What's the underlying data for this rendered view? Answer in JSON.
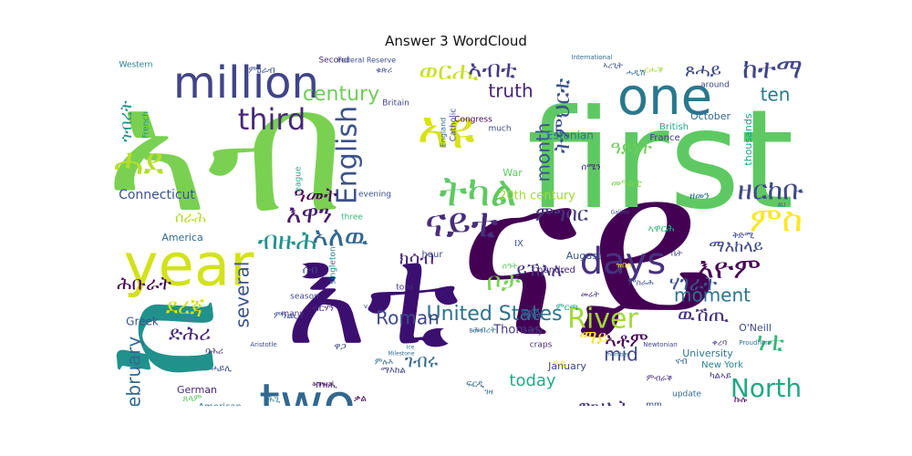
{
  "title": "Answer 3 WordCloud",
  "palette": [
    "#440154",
    "#3b528b",
    "#21918c",
    "#5ec962",
    "#fde725"
  ],
  "words": [
    {
      "text": "ናይ",
      "color": "#440154"
    },
    {
      "text": "ኣብ",
      "color": "#7ad151"
    },
    {
      "text": "first",
      "color": "#5ec962"
    },
    {
      "text": "እቲ",
      "color": "#3b0f70"
    },
    {
      "text": "ከ",
      "color": "#21918c"
    },
    {
      "text": "year",
      "color": "#d2e21b"
    },
    {
      "text": "million",
      "color": "#414487"
    },
    {
      "text": "one",
      "color": "#2a788e"
    },
    {
      "text": "two",
      "color": "#31688e"
    },
    {
      "text": "days",
      "color": "#46327e"
    },
    {
      "text": "third",
      "color": "#482878"
    },
    {
      "text": "English",
      "color": "#3b528b"
    },
    {
      "text": "ናይቲ",
      "color": "#472d7b"
    },
    {
      "text": "ኣዩ",
      "color": "#d8e219"
    },
    {
      "text": "ትካል",
      "color": "#5ec962"
    },
    {
      "text": "ከተማ",
      "color": "#414487"
    },
    {
      "text": "ዘርከቡ",
      "color": "#3e4989"
    },
    {
      "text": "United States",
      "color": "#2c728e"
    },
    {
      "text": "River",
      "color": "#a0da39"
    },
    {
      "text": "North",
      "color": "#22a884"
    },
    {
      "text": "today",
      "color": "#25ab82"
    },
    {
      "text": "century",
      "color": "#6ece58"
    },
    {
      "text": "month",
      "color": "#3b528b"
    },
    {
      "text": "truth",
      "color": "#482475"
    },
    {
      "text": "ten",
      "color": "#2a788e"
    },
    {
      "text": "ምስ",
      "color": "#fde725"
    },
    {
      "text": "እዋን",
      "color": "#481a6c"
    },
    {
      "text": "ዓመት",
      "color": "#440154"
    },
    {
      "text": "ሓደ",
      "color": "#b5de2b"
    },
    {
      "text": "ጾሓይ",
      "color": "#3e4a89"
    },
    {
      "text": "ወርሒ",
      "color": "#c8e020"
    },
    {
      "text": "ኣብቲ",
      "color": "#443983"
    },
    {
      "text": "ትምህርቲ",
      "color": "#3b528b"
    },
    {
      "text": "ዓይነት",
      "color": "#6ece58"
    },
    {
      "text": "ምግባር",
      "color": "#453781"
    },
    {
      "text": "ኣለዉ",
      "color": "#31688e"
    },
    {
      "text": "ብዙሕ",
      "color": "#21918c"
    },
    {
      "text": "ክሳብ",
      "color": "#482878"
    },
    {
      "text": "ሃገራት",
      "color": "#3b528b"
    },
    {
      "text": "እዮም",
      "color": "#440154"
    },
    {
      "text": "ማእከላይ",
      "color": "#3e4989"
    },
    {
      "text": "moment",
      "color": "#2c728e"
    },
    {
      "text": "ዉሽጢ",
      "color": "#46327e"
    },
    {
      "text": "ነቲ",
      "color": "#35b779"
    },
    {
      "text": "ይኽእሉ",
      "color": "#453781"
    },
    {
      "text": "ቦታ",
      "color": "#7ad151"
    },
    {
      "text": "Roman",
      "color": "#3e4989"
    },
    {
      "text": "several",
      "color": "#3b528b"
    },
    {
      "text": "February",
      "color": "#31688e"
    },
    {
      "text": "ሕቡራት",
      "color": "#440154"
    },
    {
      "text": "ደረጃ",
      "color": "#d8e219"
    },
    {
      "text": "ድሕሪ",
      "color": "#482878"
    },
    {
      "text": "ግዝኣት",
      "color": "#46327e"
    },
    {
      "text": "mid",
      "color": "#3e4989"
    },
    {
      "text": "ገብሩ",
      "color": "#31688e"
    },
    {
      "text": "ኣቶም",
      "color": "#440154"
    },
    {
      "text": "ማይ",
      "color": "#fde725"
    },
    {
      "text": "ጎብረት",
      "color": "#21918c"
    },
    {
      "text": "ሰራሕ",
      "color": "#b5de2b"
    },
    {
      "text": "Connecticut",
      "color": "#3b528b"
    },
    {
      "text": "20th century",
      "color": "#a0da39"
    },
    {
      "text": "Estonian",
      "color": "#2c728e"
    },
    {
      "text": "October",
      "color": "#31688e"
    },
    {
      "text": "thousands",
      "color": "#1f9e89"
    },
    {
      "text": "British",
      "color": "#22a884"
    },
    {
      "text": "France",
      "color": "#453781"
    },
    {
      "text": "University",
      "color": "#2a788e"
    },
    {
      "text": "New York",
      "color": "#26828e"
    },
    {
      "text": "O'Neill",
      "color": "#3e4989"
    },
    {
      "text": "August",
      "color": "#3b528b"
    },
    {
      "text": "January",
      "color": "#414487"
    },
    {
      "text": "Thomas",
      "color": "#453781"
    },
    {
      "text": "hundred",
      "color": "#482878"
    },
    {
      "text": "hour",
      "color": "#3e4989"
    },
    {
      "text": "tons",
      "color": "#46327e"
    },
    {
      "text": "America",
      "color": "#31688e"
    },
    {
      "text": "Greek",
      "color": "#3b528b"
    },
    {
      "text": "German",
      "color": "#482878"
    },
    {
      "text": "American",
      "color": "#2c728e"
    },
    {
      "text": "many",
      "color": "#46327e"
    },
    {
      "text": "season",
      "color": "#3e4989"
    },
    {
      "text": "evening",
      "color": "#3b528b"
    },
    {
      "text": "three",
      "color": "#35b779"
    },
    {
      "text": "Second",
      "color": "#482878"
    },
    {
      "text": "Western",
      "color": "#26828e"
    },
    {
      "text": "Federal Reserve",
      "color": "#3b528b"
    },
    {
      "text": "Congress",
      "color": "#440154"
    },
    {
      "text": "Britain",
      "color": "#414487"
    },
    {
      "text": "War",
      "color": "#5ec962"
    },
    {
      "text": "Catholic",
      "color": "#3e4989"
    },
    {
      "text": "England",
      "color": "#31688e"
    },
    {
      "text": "League",
      "color": "#22a884"
    },
    {
      "text": "singleton",
      "color": "#2a788e"
    },
    {
      "text": "around",
      "color": "#414487"
    },
    {
      "text": "much",
      "color": "#3e4989"
    },
    {
      "text": "early",
      "color": "#46327e"
    },
    {
      "text": "Nine",
      "color": "#2c728e"
    },
    {
      "text": "craps",
      "color": "#482878"
    },
    {
      "text": "four",
      "color": "#3b528b"
    },
    {
      "text": "update",
      "color": "#31688e"
    },
    {
      "text": "mm",
      "color": "#3e4989"
    },
    {
      "text": "IX",
      "color": "#3b528b"
    },
    {
      "text": "French",
      "color": "#21918c"
    },
    {
      "text": "International",
      "color": "#31688e"
    },
    {
      "text": "Aristotle",
      "color": "#3e4989"
    },
    {
      "text": "Proudhon",
      "color": "#2c728e"
    },
    {
      "text": "Newtonian",
      "color": "#414487"
    },
    {
      "text": "Galileo",
      "color": "#3e4989"
    },
    {
      "text": "annual",
      "color": "#440154"
    },
    {
      "text": "Build",
      "color": "#3b528b"
    },
    {
      "text": "Milestone",
      "color": "#31688e"
    },
    {
      "text": "Federation",
      "color": "#2c728e"
    },
    {
      "text": "number",
      "color": "#31688e"
    },
    {
      "text": "Ice",
      "color": "#2c728e"
    },
    {
      "text": "v",
      "color": "#3e4989"
    },
    {
      "text": "AU",
      "color": "#3b528b"
    },
    {
      "text": "ክልል",
      "color": "#3e4989"
    },
    {
      "text": "ሰሜን",
      "color": "#482878"
    },
    {
      "text": "ገዛ",
      "color": "#31688e"
    },
    {
      "text": "ሓይሊ",
      "color": "#3b528b"
    },
    {
      "text": "ባሕሪ",
      "color": "#453781"
    },
    {
      "text": "ሰብ",
      "color": "#414487"
    },
    {
      "text": "መሬት",
      "color": "#46327e"
    },
    {
      "text": "ቤት",
      "color": "#3e4989"
    },
    {
      "text": "ዘመን",
      "color": "#2c728e"
    },
    {
      "text": "ሰዓት",
      "color": "#5ec962"
    },
    {
      "text": "ዓዲ",
      "color": "#fde725"
    },
    {
      "text": "ኣዋርሕ",
      "color": "#35b779"
    },
    {
      "text": "መዓልቲ",
      "color": "#7ad151"
    },
    {
      "text": "ቃል",
      "color": "#440154"
    },
    {
      "text": "ፍርዲ",
      "color": "#31688e"
    },
    {
      "text": "ምንጪ",
      "color": "#3b528b"
    },
    {
      "text": "ብዝሒ",
      "color": "#482878"
    },
    {
      "text": "ሕጊ",
      "color": "#2a788e"
    },
    {
      "text": "ዋጋ",
      "color": "#3e4989"
    },
    {
      "text": "ካልኣይ",
      "color": "#453781"
    },
    {
      "text": "ምርጫ",
      "color": "#22a884"
    },
    {
      "text": "ናብ",
      "color": "#31688e"
    },
    {
      "text": "ኩሉ",
      "color": "#440154"
    },
    {
      "text": "ዝበለ",
      "color": "#fde725"
    },
    {
      "text": "ምስራሕ",
      "color": "#3b528b"
    },
    {
      "text": "ቅድሚ",
      "color": "#3e4989"
    },
    {
      "text": "ጸላም",
      "color": "#5ec962"
    },
    {
      "text": "ብርሃን",
      "color": "#482878"
    },
    {
      "text": "ምሉእ",
      "color": "#31688e"
    },
    {
      "text": "ምዕራብ",
      "color": "#3b528b"
    },
    {
      "text": "ምብራቕ",
      "color": "#46327e"
    },
    {
      "text": "ማእከል",
      "color": "#414487"
    },
    {
      "text": "ሕብረት",
      "color": "#2c728e"
    },
    {
      "text": "ቁጽሪ",
      "color": "#3e4989"
    },
    {
      "text": "ርሑቕ",
      "color": "#a0da39"
    },
    {
      "text": "ቀረባ",
      "color": "#453781"
    },
    {
      "text": "ሓዲሽ",
      "color": "#31688e"
    },
    {
      "text": "ኣረጊት",
      "color": "#3b528b"
    }
  ]
}
